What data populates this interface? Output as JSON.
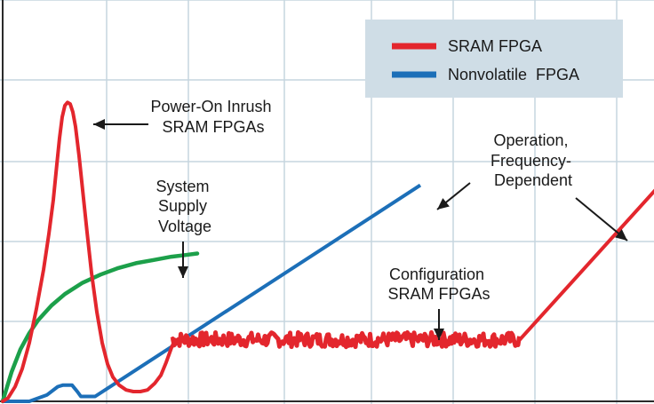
{
  "chart_data": {
    "type": "line",
    "title": "",
    "xlabel": "",
    "ylabel": "",
    "grid": true,
    "legend_position": "top-right",
    "colors": {
      "background": "#ffffff",
      "grid": "#c5d5df",
      "axis": "#2b2b2b",
      "legend_bg": "#cfdde6"
    },
    "legend": [
      {
        "name": "SRAM FPGA",
        "color": "#e3262d"
      },
      {
        "name": "Nonvolatile  FPGA",
        "color": "#1c6fb8"
      }
    ],
    "series": [
      {
        "name": "SRAM FPGA",
        "color": "#e3262d",
        "points": [
          [
            0,
            0
          ],
          [
            6,
            0.2
          ],
          [
            14,
            0.9
          ],
          [
            22,
            2.0
          ],
          [
            30,
            3.6
          ],
          [
            38,
            5.7
          ],
          [
            46,
            8.1
          ],
          [
            52,
            10.3
          ],
          [
            57,
            12.4
          ],
          [
            61,
            14.6
          ],
          [
            64,
            16.2
          ],
          [
            67,
            17.5
          ],
          [
            70,
            18.2
          ],
          [
            73,
            18.4
          ],
          [
            76,
            18.3
          ],
          [
            79,
            17.8
          ],
          [
            82,
            16.9
          ],
          [
            86,
            15.1
          ],
          [
            90,
            13.0
          ],
          [
            95,
            10.4
          ],
          [
            100,
            7.9
          ],
          [
            106,
            5.5
          ],
          [
            112,
            3.6
          ],
          [
            118,
            2.3
          ],
          [
            124,
            1.5
          ],
          [
            131,
            1.0
          ],
          [
            139,
            0.7
          ],
          [
            147,
            0.6
          ],
          [
            155,
            0.6
          ],
          [
            163,
            0.7
          ],
          [
            171,
            1.1
          ],
          [
            178,
            1.6
          ],
          [
            184,
            2.4
          ],
          [
            190,
            3.3
          ],
          [
            194,
            3.8
          ]
        ],
        "noisy_segment": {
          "x_range": [
            190,
            582
          ],
          "y": 3.8,
          "amplitude": 0.45
        },
        "ramp": [
          [
            582,
            3.8
          ],
          [
            736,
            13.1
          ]
        ]
      },
      {
        "name": "Nonvolatile  FPGA",
        "color": "#1c6fb8",
        "points": [
          [
            0,
            0
          ],
          [
            30,
            0
          ],
          [
            50,
            0.4
          ],
          [
            62,
            0.9
          ],
          [
            68,
            1.0
          ],
          [
            78,
            1.0
          ],
          [
            84,
            0.6
          ],
          [
            88,
            0.3
          ],
          [
            104,
            0.3
          ],
          [
            470,
            13.3
          ]
        ]
      },
      {
        "name": "",
        "color": "#1ca04a",
        "points": [
          [
            0,
            0
          ],
          [
            10,
            1.8
          ],
          [
            20,
            3.2
          ],
          [
            30,
            4.2
          ],
          [
            40,
            5.0
          ],
          [
            55,
            5.9
          ],
          [
            70,
            6.6
          ],
          [
            90,
            7.3
          ],
          [
            110,
            7.8
          ],
          [
            130,
            8.2
          ],
          [
            150,
            8.5
          ],
          [
            170,
            8.7
          ],
          [
            190,
            8.9
          ],
          [
            205,
            9.0
          ],
          [
            219,
            9.1
          ]
        ]
      }
    ],
    "annotations": [
      {
        "id": "inrush",
        "lines": [
          "Power-On Inrush",
          "SRAM FPGAs"
        ]
      },
      {
        "id": "supply",
        "lines": [
          "System",
          "Supply",
          "Voltage"
        ]
      },
      {
        "id": "operation",
        "lines": [
          "Operation,",
          "Frequency-",
          "Dependent"
        ]
      },
      {
        "id": "configuration",
        "lines": [
          "Configuration",
          "SRAM FPGAs"
        ]
      }
    ]
  }
}
